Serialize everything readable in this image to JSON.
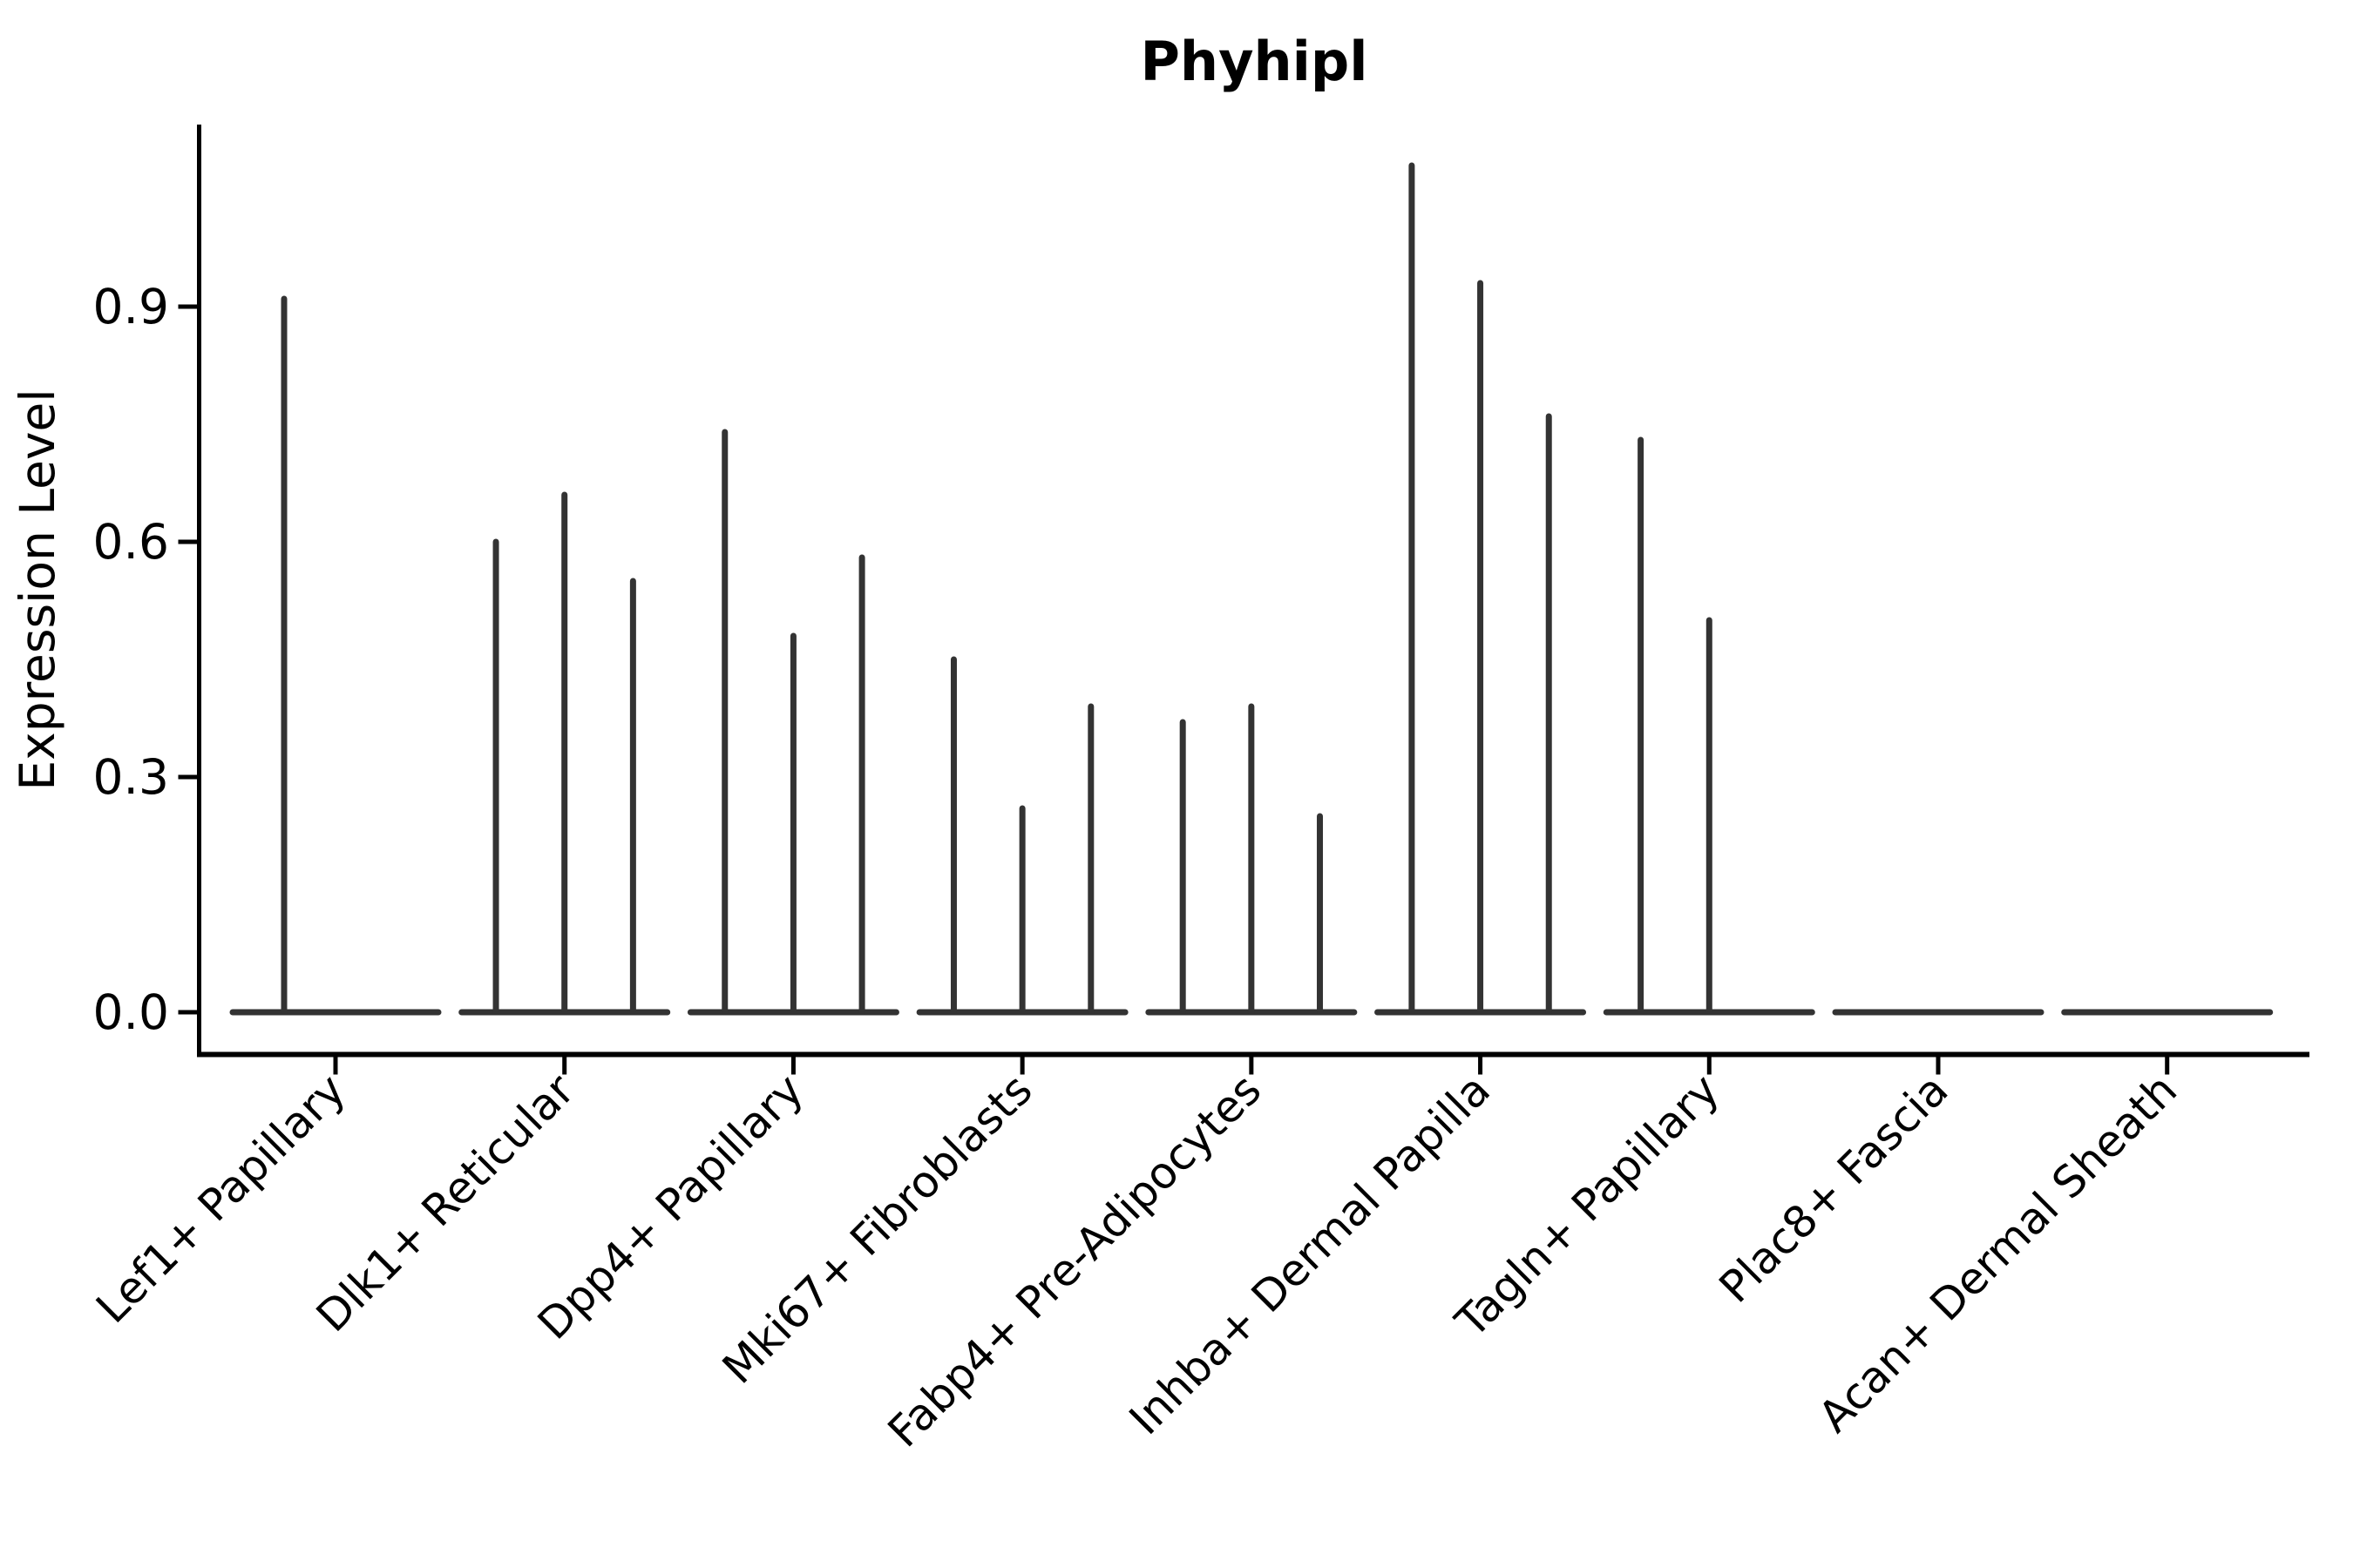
{
  "title": "Phyhipl",
  "ylabel": "Expression Level",
  "chart_data": {
    "type": "violin",
    "title": "Phyhipl",
    "xlabel": "",
    "ylabel": "Expression Level",
    "legend": "none",
    "grid": false,
    "ylim": [
      0,
      1.13
    ],
    "yticks": [
      0.0,
      0.3,
      0.6,
      0.9
    ],
    "ytick_labels": [
      "0.0",
      "0.3",
      "0.6",
      "0.9"
    ],
    "categories": [
      "Lef1+ Papillary",
      "Dlk1+ Reticular",
      "Dpp4+ Papillary",
      "Mki67+ Fibroblasts",
      "Fabp4+ Pre-Adipocytes",
      "Inhba+ Dermal Papilla",
      "Tagln+ Papillary",
      "Plac8+ Fascia",
      "Acan+ Dermal Sheath"
    ],
    "groups": [
      {
        "category": "Lef1+ Papillary",
        "violin_maxima": [
          0.91,
          0
        ]
      },
      {
        "category": "Dlk1+ Reticular",
        "violin_maxima": [
          0.6,
          0.66,
          0.55
        ]
      },
      {
        "category": "Dpp4+ Papillary",
        "violin_maxima": [
          0.74,
          0.48,
          0.58
        ]
      },
      {
        "category": "Mki67+ Fibroblasts",
        "violin_maxima": [
          0.45,
          0.26,
          0.39
        ]
      },
      {
        "category": "Fabp4+ Pre-Adipocytes",
        "violin_maxima": [
          0.37,
          0.39,
          0.25
        ]
      },
      {
        "category": "Inhba+ Dermal Papilla",
        "violin_maxima": [
          1.08,
          0.93,
          0.76
        ]
      },
      {
        "category": "Tagln+ Papillary",
        "violin_maxima": [
          0.73,
          0.5,
          0
        ]
      },
      {
        "category": "Plac8+ Fascia",
        "violin_maxima": [
          0,
          0,
          0
        ]
      },
      {
        "category": "Acan+ Dermal Sheath",
        "violin_maxima": [
          0,
          0,
          0
        ]
      }
    ],
    "description": "Needle-shaped violins: wide flat base at expression 0 with a thin spike up to the maximum expression value; violins with maximum 0 collapse to a flat line.",
    "colors": {
      "violin_stroke": "#333333",
      "axis": "#000000",
      "background": "#ffffff"
    }
  }
}
